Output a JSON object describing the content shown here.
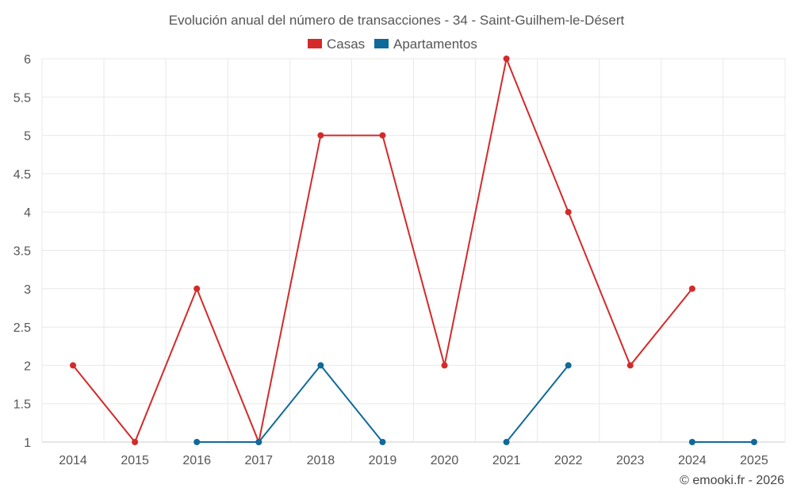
{
  "chart_data": {
    "type": "line",
    "title": "Evolución anual del número de transacciones - 34 - Saint-Guilhem-le-Désert",
    "xlabel": "",
    "ylabel": "",
    "categories": [
      "2014",
      "2015",
      "2016",
      "2017",
      "2018",
      "2019",
      "2020",
      "2021",
      "2022",
      "2023",
      "2024",
      "2025"
    ],
    "ylim": [
      1,
      6
    ],
    "yticks": [
      "1",
      "1.5",
      "2",
      "2.5",
      "3",
      "3.5",
      "4",
      "4.5",
      "5",
      "5.5",
      "6"
    ],
    "grid": true,
    "legend_position": "top-center",
    "series": [
      {
        "name": "Casas",
        "color": "#d42a2a",
        "values": [
          2,
          1,
          3,
          1,
          5,
          5,
          2,
          6,
          4,
          2,
          3,
          null
        ]
      },
      {
        "name": "Apartamentos",
        "color": "#0f6a9a",
        "values": [
          null,
          null,
          1,
          1,
          2,
          1,
          null,
          1,
          2,
          null,
          1,
          1
        ]
      }
    ]
  },
  "credit": "© emooki.fr - 2026"
}
